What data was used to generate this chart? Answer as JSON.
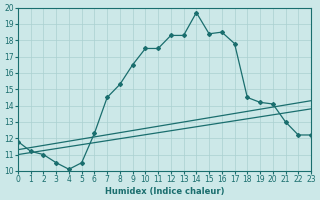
{
  "xlabel": "Humidex (Indice chaleur)",
  "bg_color": "#cce8e8",
  "grid_color": "#aad0d0",
  "line_color": "#1a6e6e",
  "xlim": [
    0,
    23
  ],
  "ylim": [
    10,
    20
  ],
  "xticks": [
    0,
    1,
    2,
    3,
    4,
    5,
    6,
    7,
    8,
    9,
    10,
    11,
    12,
    13,
    14,
    15,
    16,
    17,
    18,
    19,
    20,
    21,
    22,
    23
  ],
  "yticks": [
    10,
    11,
    12,
    13,
    14,
    15,
    16,
    17,
    18,
    19,
    20
  ],
  "main_x": [
    0,
    1,
    2,
    3,
    4,
    5,
    6,
    7,
    8,
    9,
    10,
    11,
    12,
    13,
    14,
    15,
    16,
    17,
    18,
    19,
    20,
    21,
    22,
    23
  ],
  "main_y": [
    11.8,
    11.2,
    11.0,
    10.5,
    10.1,
    10.5,
    12.3,
    14.5,
    15.3,
    16.5,
    17.5,
    17.5,
    18.3,
    18.3,
    19.7,
    18.4,
    18.5,
    17.8,
    14.5,
    14.2,
    14.1,
    13.0,
    12.2,
    12.2
  ],
  "line2_x": [
    0,
    23
  ],
  "line2_y": [
    11.0,
    13.8
  ],
  "line3_x": [
    0,
    23
  ],
  "line3_y": [
    11.3,
    14.3
  ]
}
